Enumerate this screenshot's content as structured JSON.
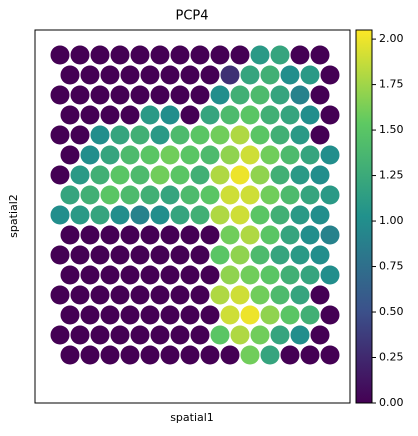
{
  "chart_data": {
    "type": "scatter",
    "title": "PCP4",
    "x_label": "spatial1",
    "y_label": "spatial2",
    "xlim": [
      0,
      315
    ],
    "ylim": [
      373,
      0
    ],
    "colormap": [
      "#440154",
      "#3b528b",
      "#21918c",
      "#5ec962",
      "#fde725"
    ],
    "colorbar_lim": [
      0,
      2.05
    ],
    "colorbar_ticks": [
      {
        "value": 0,
        "label": "0.00"
      },
      {
        "value": 0.25,
        "label": "0.25"
      },
      {
        "value": 0.5,
        "label": "0.50"
      },
      {
        "value": 0.75,
        "label": "0.75"
      },
      {
        "value": 1,
        "label": "1.00"
      },
      {
        "value": 1.25,
        "label": "1.25"
      },
      {
        "value": 1.5,
        "label": "1.50"
      },
      {
        "value": 1.75,
        "label": "1.75"
      },
      {
        "value": 2,
        "label": "2.00"
      }
    ],
    "x": [
      25,
      45,
      65,
      85,
      105,
      125,
      145,
      165,
      185,
      205,
      225,
      245,
      265,
      285,
      35,
      55,
      75,
      95,
      115,
      135,
      155,
      175,
      195,
      215,
      235,
      255,
      275,
      295,
      25,
      45,
      65,
      85,
      105,
      125,
      145,
      165,
      185,
      205,
      225,
      245,
      265,
      285,
      35,
      55,
      75,
      95,
      115,
      135,
      155,
      175,
      195,
      215,
      235,
      255,
      275,
      295,
      25,
      45,
      65,
      85,
      105,
      125,
      145,
      165,
      185,
      205,
      225,
      245,
      265,
      285,
      35,
      55,
      75,
      95,
      115,
      135,
      155,
      175,
      195,
      215,
      235,
      255,
      275,
      295,
      25,
      45,
      65,
      85,
      105,
      125,
      145,
      165,
      185,
      205,
      225,
      245,
      265,
      285,
      35,
      55,
      75,
      95,
      115,
      135,
      155,
      175,
      195,
      215,
      235,
      255,
      275,
      295,
      25,
      45,
      65,
      85,
      105,
      125,
      145,
      165,
      185,
      205,
      225,
      245,
      265,
      285,
      35,
      55,
      75,
      95,
      115,
      135,
      155,
      175,
      195,
      215,
      235,
      255,
      275,
      295,
      25,
      45,
      65,
      85,
      105,
      125,
      145,
      165,
      185,
      205,
      225,
      245,
      265,
      285,
      35,
      55,
      75,
      95,
      115,
      135,
      155,
      175,
      195,
      215,
      235,
      255,
      275,
      295,
      25,
      45,
      65,
      85,
      105,
      125,
      145,
      165,
      185,
      205,
      225,
      245,
      265,
      285,
      35,
      55,
      75,
      95,
      115,
      135,
      155,
      175,
      195,
      215,
      235,
      255,
      275,
      295,
      25,
      45,
      65,
      85,
      105,
      125,
      145,
      165,
      185,
      205,
      225,
      245,
      265,
      285,
      35,
      55,
      75,
      95,
      115,
      135,
      155,
      175,
      195,
      215,
      235,
      255,
      275,
      295
    ],
    "y": [
      25,
      25,
      25,
      25,
      25,
      25,
      25,
      25,
      25,
      25,
      25,
      25,
      25,
      25,
      45,
      45,
      45,
      45,
      45,
      45,
      45,
      45,
      45,
      45,
      45,
      45,
      45,
      45,
      65,
      65,
      65,
      65,
      65,
      65,
      65,
      65,
      65,
      65,
      65,
      65,
      65,
      65,
      85,
      85,
      85,
      85,
      85,
      85,
      85,
      85,
      85,
      85,
      85,
      85,
      85,
      85,
      105,
      105,
      105,
      105,
      105,
      105,
      105,
      105,
      105,
      105,
      105,
      105,
      105,
      105,
      125,
      125,
      125,
      125,
      125,
      125,
      125,
      125,
      125,
      125,
      125,
      125,
      125,
      125,
      145,
      145,
      145,
      145,
      145,
      145,
      145,
      145,
      145,
      145,
      145,
      145,
      145,
      145,
      165,
      165,
      165,
      165,
      165,
      165,
      165,
      165,
      165,
      165,
      165,
      165,
      165,
      165,
      185,
      185,
      185,
      185,
      185,
      185,
      185,
      185,
      185,
      185,
      185,
      185,
      185,
      185,
      205,
      205,
      205,
      205,
      205,
      205,
      205,
      205,
      205,
      205,
      205,
      205,
      205,
      205,
      225,
      225,
      225,
      225,
      225,
      225,
      225,
      225,
      225,
      225,
      225,
      225,
      225,
      225,
      245,
      245,
      245,
      245,
      245,
      245,
      245,
      245,
      245,
      245,
      245,
      245,
      245,
      245,
      265,
      265,
      265,
      265,
      265,
      265,
      265,
      265,
      265,
      265,
      265,
      265,
      265,
      265,
      285,
      285,
      285,
      285,
      285,
      285,
      285,
      285,
      285,
      285,
      285,
      285,
      285,
      285,
      305,
      305,
      305,
      305,
      305,
      305,
      305,
      305,
      305,
      305,
      305,
      305,
      305,
      305,
      325,
      325,
      325,
      325,
      325,
      325,
      325,
      325,
      325,
      325,
      325,
      325,
      325,
      325
    ],
    "values": [
      0,
      0,
      0,
      0,
      0,
      0,
      0,
      0,
      0,
      0,
      1.1,
      1.2,
      0,
      0,
      0,
      0,
      0,
      0,
      0,
      0,
      0,
      0,
      0.3,
      1.2,
      1.3,
      1.0,
      1.1,
      0,
      0,
      0,
      0,
      0,
      0,
      0,
      0,
      0,
      1.0,
      1.3,
      1.4,
      1.2,
      0.9,
      0,
      0,
      0,
      0,
      0,
      1.1,
      1.0,
      0,
      1.2,
      1.4,
      1.5,
      1.3,
      1.2,
      1.0,
      0,
      0,
      0,
      1.0,
      1.2,
      1.3,
      1.1,
      1.4,
      1.5,
      1.6,
      1.8,
      1.5,
      1.3,
      1.1,
      0,
      0,
      1.0,
      1.2,
      1.4,
      1.5,
      1.6,
      1.5,
      1.4,
      1.7,
      1.9,
      1.6,
      1.4,
      1.2,
      1.0,
      0,
      1.1,
      1.3,
      1.5,
      1.4,
      1.6,
      1.5,
      1.3,
      1.8,
      2.0,
      1.7,
      1.3,
      1.1,
      1.0,
      1.2,
      1.3,
      1.5,
      1.4,
      1.3,
      1.2,
      1.4,
      1.5,
      1.9,
      1.9,
      1.6,
      1.4,
      1.2,
      1.1,
      1.0,
      1.1,
      1.2,
      1.0,
      0.9,
      1.0,
      1.2,
      1.3,
      1.8,
      1.9,
      1.5,
      1.3,
      1.1,
      1.0,
      0,
      0,
      0,
      0,
      0,
      0,
      0,
      0,
      1.6,
      1.8,
      1.5,
      1.2,
      1.0,
      0.9,
      0,
      0,
      0,
      0,
      0,
      0,
      0,
      0,
      1.5,
      1.7,
      1.4,
      1.2,
      1.1,
      1.0,
      0,
      0,
      0,
      0,
      0,
      0,
      0,
      0,
      1.7,
      1.6,
      1.5,
      1.3,
      1.2,
      1.0,
      0,
      0,
      0,
      0,
      0,
      0,
      0,
      0,
      1.8,
      1.9,
      1.6,
      1.4,
      1.2,
      0,
      0,
      0,
      0,
      0,
      0,
      0,
      0,
      0,
      1.9,
      2.0,
      1.7,
      1.5,
      1.3,
      0,
      0,
      0,
      0,
      0,
      0,
      0,
      0,
      0,
      1.5,
      1.8,
      1.6,
      1.2,
      1.0,
      0,
      0,
      0,
      0,
      0,
      0,
      0,
      0,
      0,
      0,
      1.6,
      1.2,
      0,
      0,
      0
    ]
  }
}
